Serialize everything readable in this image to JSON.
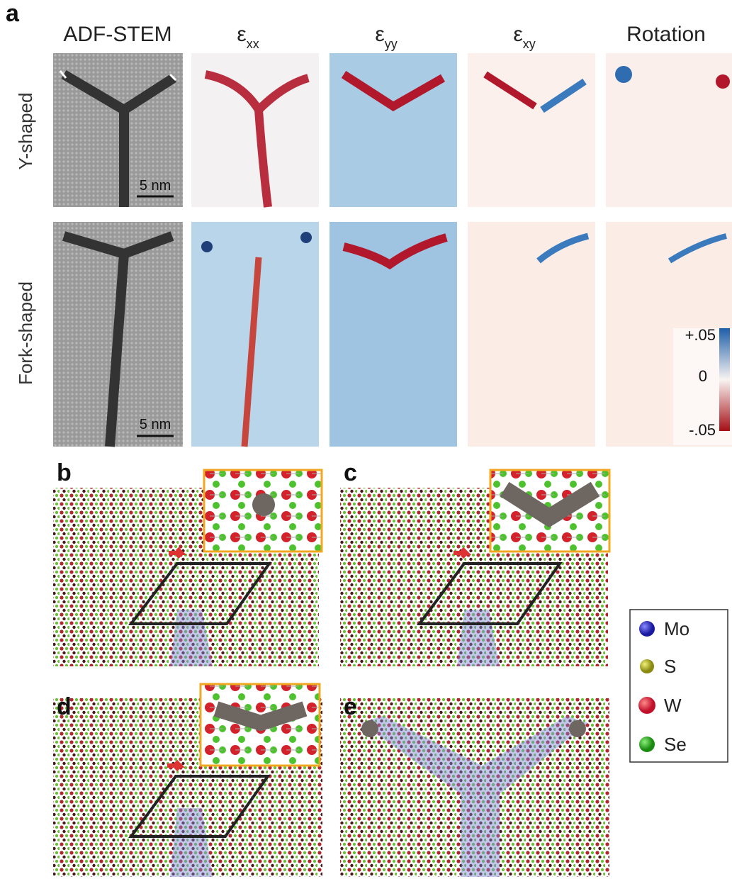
{
  "panel_a": {
    "label": "a",
    "columns": [
      "ADF-STEM",
      {
        "symbol": "ε",
        "subscript": "xx"
      },
      {
        "symbol": "ε",
        "subscript": "yy"
      },
      {
        "symbol": "ε",
        "subscript": "xy"
      },
      "Rotation"
    ],
    "rows": [
      "Y-shaped",
      "Fork-shaped"
    ],
    "scale_bars": [
      "5 nm",
      "5 nm"
    ],
    "colorbar": [
      "+.05",
      "0",
      "-.05"
    ]
  },
  "panels": [
    "b",
    "c",
    "d",
    "e"
  ],
  "legend": [
    "Mo",
    "S",
    "W",
    "Se"
  ]
}
